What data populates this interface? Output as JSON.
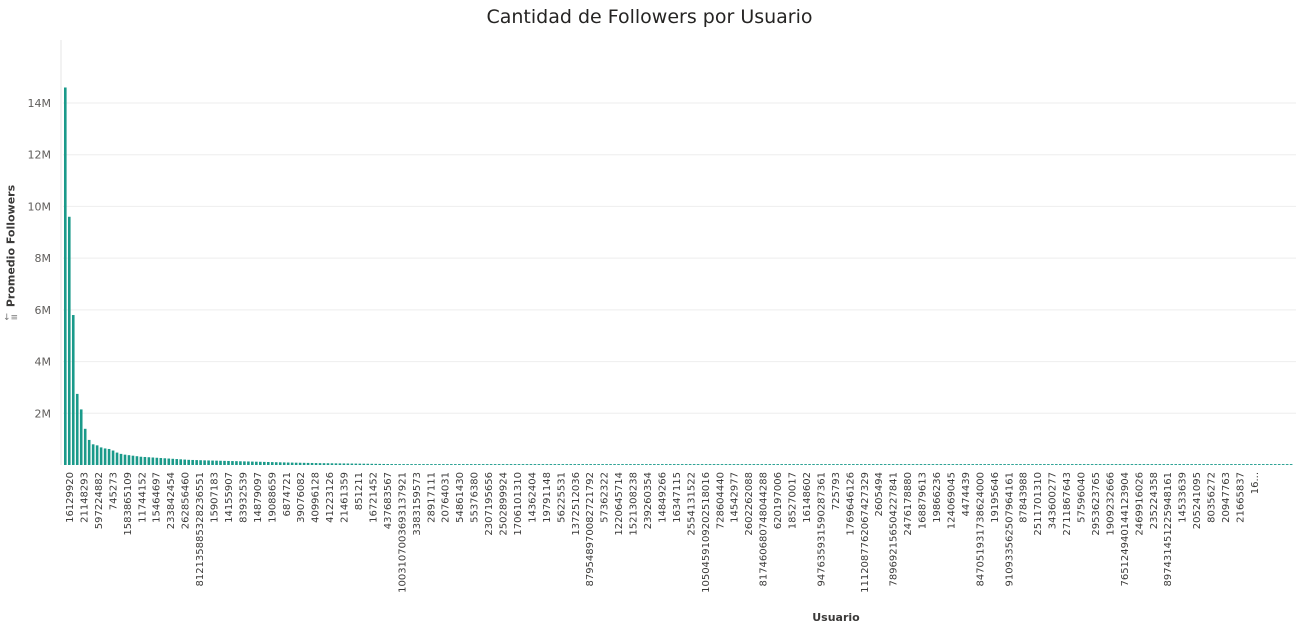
{
  "chart_data": {
    "type": "bar",
    "title": "Cantidad de Followers por Usuario",
    "xlabel": "Usuario",
    "ylabel": "Promedio Followers",
    "sort_indicator": "↓≡",
    "ylim": [
      0,
      16000000
    ],
    "yticks": [
      {
        "value": 2000000,
        "label": "2M"
      },
      {
        "value": 4000000,
        "label": "4M"
      },
      {
        "value": 6000000,
        "label": "6M"
      },
      {
        "value": 8000000,
        "label": "8M"
      },
      {
        "value": 10000000,
        "label": "10M"
      },
      {
        "value": 12000000,
        "label": "12M"
      },
      {
        "value": 14000000,
        "label": "14M"
      }
    ],
    "grid": true,
    "bar_color": "#118DFF",
    "bar_color_actual": "#1a9a8a",
    "category_labels": [
      "16129920",
      "21148293",
      "597224882",
      "745273",
      "1583865109",
      "11744152",
      "15464697",
      "233842454",
      "262856460",
      "812135885328236551",
      "15907183",
      "14155907",
      "83932539",
      "14879097",
      "19088659",
      "6874721",
      "39076082",
      "40996128",
      "41223126",
      "21461359",
      "851211",
      "16721452",
      "437683567",
      "1003107003693137921",
      "3383159573",
      "28917111",
      "20764031",
      "54861430",
      "55376380",
      "2307195656",
      "2502899924",
      "1706101310",
      "14362404",
      "19791148",
      "56225531",
      "1372512036",
      "879548970082721792",
      "57362322",
      "1220645714",
      "1521308238",
      "239260354",
      "14849266",
      "16347115",
      "2554131522",
      "1050459109202518016",
      "728604440",
      "14542977",
      "2602262088",
      "817460680748044288",
      "620197006",
      "185270017",
      "16148602",
      "947635931590287361",
      "725793",
      "1769646126",
      "1112087762067427329",
      "2605494",
      "789692156504227841",
      "2476178880",
      "168879613",
      "19866236",
      "124069045",
      "4474439",
      "847051931738624000",
      "19195646",
      "910933562507964161",
      "87843988",
      "2511701310",
      "343600277",
      "2711867643",
      "57596040",
      "2953623765",
      "1909232666",
      "765124940144123904",
      "2469916026",
      "235224358",
      "897431451225948161",
      "14533639",
      "205241095",
      "80356272",
      "20947763",
      "21665837",
      "16..."
    ],
    "values": [
      14600000,
      9600000,
      5800000,
      2750000,
      2150000,
      1400000,
      970000,
      800000,
      760000,
      680000,
      640000,
      620000,
      560000,
      480000,
      430000,
      400000,
      380000,
      360000,
      340000,
      320000,
      310000,
      300000,
      290000,
      280000,
      270000,
      260000,
      250000,
      240000,
      230000,
      220000,
      210000,
      200000,
      195000,
      190000,
      185000,
      180000,
      176000,
      172000,
      168000,
      164000,
      160000,
      156000,
      152000,
      148000,
      144000,
      140000,
      136000,
      132000,
      128000,
      124000,
      120000,
      116000,
      112000,
      108000,
      104000,
      100000,
      96000,
      93000,
      90000,
      87000,
      84000,
      81000,
      78000,
      75000,
      72000,
      70000,
      68000,
      66000,
      64000,
      62000,
      60000,
      58000,
      56000,
      54000,
      52000,
      50000,
      48000,
      46000,
      44000,
      42000,
      40000,
      38000,
      37000,
      36000,
      35000,
      34000,
      33000,
      32000,
      31000,
      30000,
      29000,
      28000,
      27000,
      26000,
      25000,
      24000,
      23000,
      22000,
      21000,
      20000,
      19500,
      19000,
      18500,
      18000,
      17500,
      17000,
      16500,
      16000,
      15500,
      15000,
      14500,
      14000,
      13500,
      13000,
      12500,
      12000,
      11500,
      11000,
      10500,
      10000,
      9800,
      9600,
      9400,
      9200,
      9000,
      8800,
      8600,
      8400,
      8200,
      8000,
      7800,
      7600,
      7400,
      7200,
      7000,
      6800,
      6600,
      6400,
      6200,
      6000,
      5800,
      5600,
      5400,
      5200,
      5000,
      4800,
      4600,
      4400,
      4200,
      4000,
      3900,
      3800,
      3700,
      3600,
      3500,
      3400,
      3300,
      3200,
      3100,
      3000,
      2900,
      2800,
      2700,
      2600,
      2500,
      2400,
      2300,
      2200,
      2100,
      2000,
      1900,
      1800,
      1700,
      1600,
      1500,
      1400,
      1300,
      1200,
      1100,
      1000,
      950,
      900,
      850,
      800,
      750,
      700,
      650,
      600,
      550,
      500,
      480,
      460,
      440,
      420,
      400,
      380,
      360,
      340,
      320,
      300,
      290,
      280,
      270,
      260,
      250,
      240,
      230,
      220,
      210,
      200,
      190,
      180,
      170,
      160,
      150,
      140,
      130,
      120,
      110,
      100,
      95,
      90,
      85,
      80,
      75,
      70,
      65,
      60,
      55,
      50,
      48,
      46,
      44,
      42,
      40,
      38,
      36,
      34,
      32,
      30,
      29,
      28,
      27,
      26,
      25,
      24,
      23,
      22,
      21,
      20,
      19,
      18,
      17,
      16,
      15,
      14,
      13,
      12,
      11,
      10,
      10,
      9,
      9,
      8,
      8,
      7,
      7,
      6,
      6,
      5,
      5,
      5,
      4,
      4,
      4,
      3,
      3,
      3,
      2,
      2,
      2,
      2,
      2,
      1,
      1,
      1,
      1,
      1,
      1,
      1,
      1,
      1,
      1,
      1,
      1,
      1,
      1,
      1,
      1,
      1,
      0,
      0,
      0,
      0,
      0,
      0,
      0,
      0,
      0,
      0,
      0,
      0,
      0,
      0,
      0,
      0,
      0,
      0,
      0,
      0,
      0,
      0,
      0,
      0,
      0,
      0,
      0,
      0,
      0,
      0,
      0,
      0,
      0,
      0,
      0,
      0,
      0,
      0,
      0,
      0,
      0,
      0,
      0,
      0,
      0,
      0,
      0,
      0,
      0,
      0,
      0,
      0,
      0,
      0,
      0,
      0,
      0,
      0,
      0,
      0,
      0,
      0,
      0,
      0,
      0,
      0,
      0,
      0,
      0,
      0,
      0,
      0,
      0,
      0,
      0,
      0,
      0,
      0,
      0,
      0,
      0,
      0,
      0,
      0,
      0,
      0,
      0,
      0,
      0,
      0,
      0,
      0,
      0,
      0,
      0,
      0,
      0,
      0,
      0,
      0
    ]
  }
}
